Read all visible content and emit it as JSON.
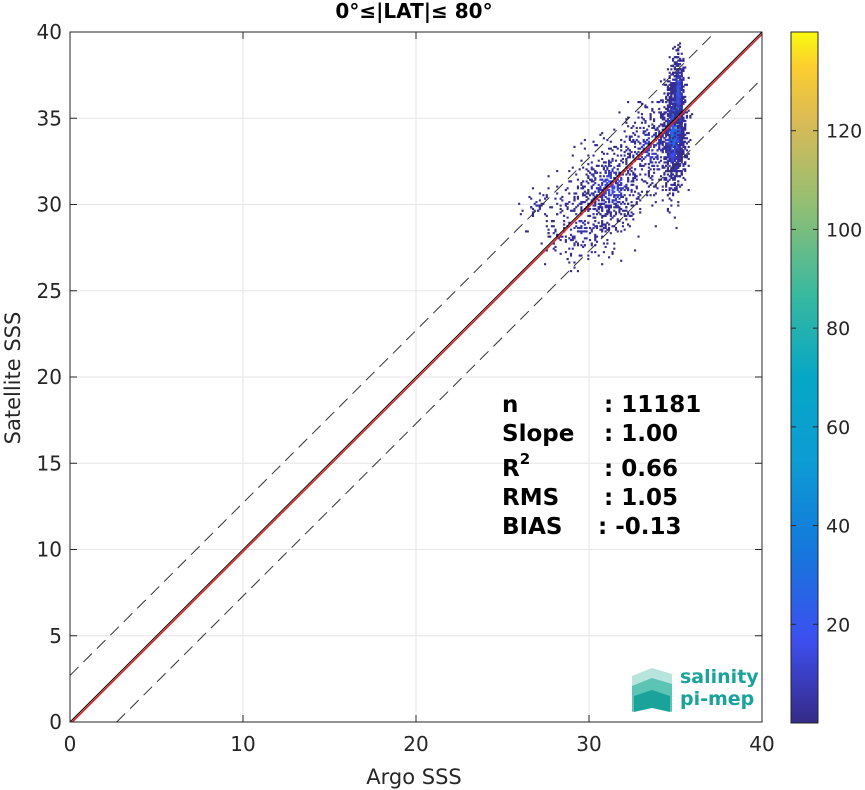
{
  "chart_data": {
    "type": "heatmap",
    "title": "0°≤|LAT|≤ 80°",
    "xlabel": "Argo SSS",
    "ylabel": "Satellite SSS",
    "xlim": [
      0,
      40
    ],
    "ylim": [
      0,
      40
    ],
    "xticks": [
      "0",
      "10",
      "20",
      "30",
      "40"
    ],
    "yticks": [
      "0",
      "5",
      "10",
      "15",
      "20",
      "25",
      "30",
      "35",
      "40"
    ],
    "grid": true,
    "lines": {
      "identity": {
        "slope": 1,
        "intercept": 0,
        "color": "#000000"
      },
      "fit": {
        "slope": 1.0,
        "intercept": -0.13,
        "color": "#d62728"
      },
      "bounds": [
        {
          "slope": 1,
          "intercept": 2.7,
          "style": "dashed"
        },
        {
          "slope": 1,
          "intercept": -2.7,
          "style": "dashed"
        }
      ]
    },
    "colorbar": {
      "range": [
        0,
        140
      ],
      "ticks": [
        "20",
        "40",
        "60",
        "80",
        "100",
        "120"
      ],
      "colormap": "parula"
    },
    "clusters": [
      {
        "x": 35.0,
        "y": 34.8,
        "sx": 0.22,
        "sy": 1.4,
        "n": 900,
        "count": 140
      },
      {
        "x": 34.8,
        "y": 33.8,
        "sx": 0.35,
        "sy": 1.6,
        "n": 600,
        "count": 40
      },
      {
        "x": 35.1,
        "y": 36.5,
        "sx": 0.15,
        "sy": 1.2,
        "n": 250,
        "count": 30
      },
      {
        "x": 31.2,
        "y": 31.0,
        "sx": 1.0,
        "sy": 1.2,
        "n": 500,
        "count": 18
      },
      {
        "x": 33.5,
        "y": 33.2,
        "sx": 0.8,
        "sy": 1.2,
        "n": 300,
        "count": 12
      },
      {
        "x": 29.5,
        "y": 28.8,
        "sx": 1.2,
        "sy": 1.3,
        "n": 250,
        "count": 6
      },
      {
        "x": 27.0,
        "y": 29.8,
        "sx": 0.5,
        "sy": 0.5,
        "n": 40,
        "count": 4
      }
    ]
  },
  "stats": {
    "labels": [
      "n",
      "Slope",
      "R",
      "RMS",
      "BIAS"
    ],
    "r_sup": "2",
    "values": [
      ": 11181",
      ": 1.00",
      ": 0.66",
      ": 1.05",
      ": -0.13"
    ]
  },
  "logo": {
    "line1": "salinity",
    "line2": "pi-mep"
  }
}
